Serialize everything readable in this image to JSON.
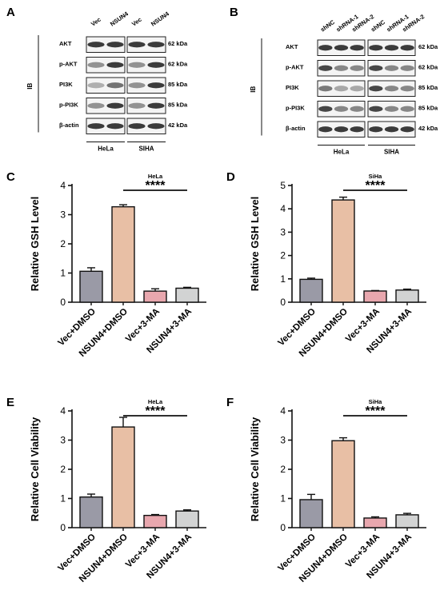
{
  "blots": {
    "A": {
      "letter": "A",
      "lanes": [
        "Vec",
        "NSUN4",
        "Vec",
        "NSUN4"
      ],
      "rows": [
        "AKT",
        "p-AKT",
        "PI3K",
        "p-PI3K",
        "β-actin"
      ],
      "kda": [
        "62 kDa",
        "62 kDa",
        "85 kDa",
        "85 kDa",
        "42 kDa"
      ],
      "ib": "IB",
      "groups": [
        "HeLa",
        "SIHA"
      ]
    },
    "B": {
      "letter": "B",
      "lanes": [
        "shNC",
        "shRNA-1",
        "shRNA-2",
        "shNC",
        "shRNA-1",
        "shRNA-2"
      ],
      "rows": [
        "AKT",
        "p-AKT",
        "PI3K",
        "p-PI3K",
        "β-actin"
      ],
      "kda": [
        "62 kDa",
        "62 kDa",
        "85 kDa",
        "85 kDa",
        "42 kDa"
      ],
      "ib": "IB",
      "groups": [
        "HeLa",
        "SIHA"
      ]
    }
  },
  "colors": {
    "bar_colors": [
      "#9a9aa6",
      "#e8bfa5",
      "#e8a7ae",
      "#d2d3d3"
    ],
    "axis": "#111111"
  },
  "chart_data": [
    {
      "letter": "C",
      "type": "bar",
      "title": "HeLa",
      "ylabel": "Relative GSH Level",
      "categories": [
        "Vec+DMSO",
        "NSUN4+DMSO",
        "Vec+3-MA",
        "NSUN4+3-MA"
      ],
      "values": [
        1.06,
        3.27,
        0.38,
        0.48
      ],
      "errors": [
        0.12,
        0.07,
        0.08,
        0.03
      ],
      "ylim": [
        0,
        4
      ],
      "yticks": [
        "0",
        "1",
        "2",
        "3",
        "4"
      ],
      "significance": "****",
      "sig_from": 1,
      "sig_to": 3
    },
    {
      "letter": "D",
      "type": "bar",
      "title": "SiHa",
      "ylabel": "Relative GSH Level",
      "categories": [
        "Vec+DMSO",
        "NSUN4+DMSO",
        "Vec+3-MA",
        "NSUN4+3-MA"
      ],
      "values": [
        0.98,
        4.38,
        0.48,
        0.52
      ],
      "errors": [
        0.05,
        0.12,
        0.02,
        0.04
      ],
      "ylim": [
        0,
        5
      ],
      "yticks": [
        "0",
        "1",
        "2",
        "3",
        "4",
        "5"
      ],
      "significance": "****",
      "sig_from": 1,
      "sig_to": 3
    },
    {
      "letter": "E",
      "type": "bar",
      "title": "HeLa",
      "ylabel": "Relative Cell Viability",
      "categories": [
        "Vec+DMSO",
        "NSUN4+DMSO",
        "Vec+3-MA",
        "NSUN4+3-MA"
      ],
      "values": [
        1.05,
        3.45,
        0.42,
        0.57
      ],
      "errors": [
        0.1,
        0.33,
        0.03,
        0.04
      ],
      "ylim": [
        0,
        4
      ],
      "yticks": [
        "0",
        "1",
        "2",
        "3",
        "4"
      ],
      "significance": "****",
      "sig_from": 1,
      "sig_to": 3
    },
    {
      "letter": "F",
      "type": "bar",
      "title": "SiHa",
      "ylabel": "Relative Cell Viability",
      "categories": [
        "Vec+DMSO",
        "NSUN4+DMSO",
        "Vec+3-MA",
        "NSUN4+3-MA"
      ],
      "values": [
        0.96,
        2.98,
        0.33,
        0.44
      ],
      "errors": [
        0.18,
        0.1,
        0.04,
        0.05
      ],
      "ylim": [
        0,
        4
      ],
      "yticks": [
        "0",
        "1",
        "2",
        "3",
        "4"
      ],
      "significance": "****",
      "sig_from": 1,
      "sig_to": 3
    }
  ]
}
